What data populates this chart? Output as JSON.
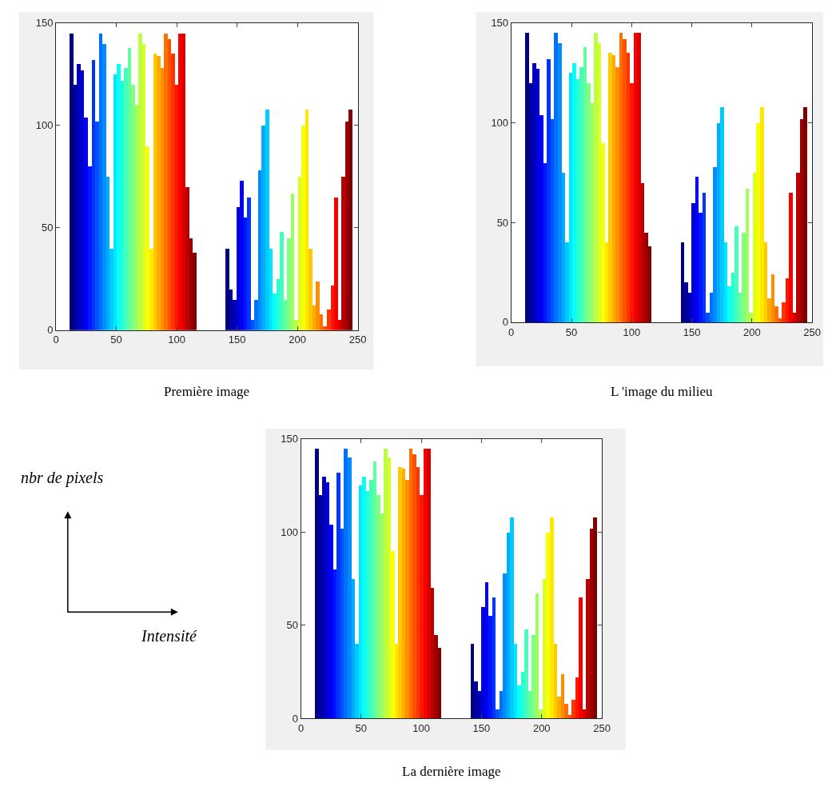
{
  "chart_data": [
    {
      "type": "bar",
      "title": "Première image",
      "xlim": [
        0,
        250
      ],
      "ylim": [
        0,
        150
      ],
      "xticks": [
        0,
        50,
        100,
        150,
        200,
        250
      ],
      "yticks": [
        0,
        50,
        100,
        150
      ],
      "x": [
        13,
        16,
        19,
        22,
        25,
        28,
        31,
        34,
        37,
        40,
        43,
        46,
        49,
        52,
        55,
        58,
        61,
        64,
        67,
        70,
        73,
        76,
        79,
        82,
        85,
        88,
        91,
        94,
        97,
        100,
        103,
        106,
        109,
        112,
        115,
        142,
        145,
        148,
        151,
        154,
        157,
        160,
        163,
        166,
        169,
        172,
        175,
        178,
        181,
        184,
        187,
        190,
        193,
        196,
        199,
        202,
        205,
        208,
        211,
        214,
        217,
        220,
        223,
        226,
        229,
        232,
        235,
        238,
        241,
        244
      ],
      "values": [
        145,
        120,
        130,
        127,
        104,
        80,
        132,
        102,
        145,
        140,
        75,
        40,
        125,
        130,
        122,
        128,
        138,
        120,
        110,
        145,
        140,
        90,
        40,
        135,
        134,
        128,
        145,
        142,
        135,
        120,
        145,
        145,
        70,
        45,
        38,
        40,
        20,
        15,
        60,
        73,
        55,
        65,
        5,
        15,
        78,
        100,
        108,
        40,
        18,
        25,
        48,
        15,
        45,
        67,
        5,
        75,
        100,
        108,
        40,
        12,
        24,
        8,
        2,
        10,
        22,
        65,
        5,
        75,
        102,
        108
      ],
      "colors": [
        "#000080",
        "#00009e",
        "#0000bb",
        "#0000d9",
        "#0000f8",
        "#0016ff",
        "#0034ff",
        "#0052ff",
        "#0070ff",
        "#008eff",
        "#00acff",
        "#00caff",
        "#00e8ff",
        "#07fff8",
        "#25ffd9",
        "#43ffbb",
        "#61ff9e",
        "#80ff80",
        "#9eff61",
        "#bbff43",
        "#d9ff25",
        "#f8ff07",
        "#ffe800",
        "#ffca00",
        "#ffac00",
        "#ff8e00",
        "#ff7000",
        "#ff5200",
        "#ff3400",
        "#ff1600",
        "#f80000",
        "#d90000",
        "#bb0000",
        "#9e0000",
        "#800000",
        "#000080",
        "#00009e",
        "#0000bb",
        "#0000d9",
        "#0000f8",
        "#0016ff",
        "#0034ff",
        "#0052ff",
        "#0070ff",
        "#008eff",
        "#00acff",
        "#00caff",
        "#00e8ff",
        "#07fff8",
        "#25ffd9",
        "#43ffbb",
        "#61ff9e",
        "#80ff80",
        "#9eff61",
        "#bbff43",
        "#d9ff25",
        "#f8ff07",
        "#ffe800",
        "#ffca00",
        "#ffac00",
        "#ff8e00",
        "#ff7000",
        "#ff5200",
        "#ff3400",
        "#ff1600",
        "#f80000",
        "#d90000",
        "#bb0000",
        "#9e0000",
        "#800000"
      ]
    },
    {
      "type": "bar",
      "title": "L 'image du milieu",
      "xlim": [
        0,
        250
      ],
      "ylim": [
        0,
        150
      ],
      "xticks": [
        0,
        50,
        100,
        150,
        200,
        250
      ],
      "yticks": [
        0,
        50,
        100,
        150
      ],
      "x": [
        13,
        16,
        19,
        22,
        25,
        28,
        31,
        34,
        37,
        40,
        43,
        46,
        49,
        52,
        55,
        58,
        61,
        64,
        67,
        70,
        73,
        76,
        79,
        82,
        85,
        88,
        91,
        94,
        97,
        100,
        103,
        106,
        109,
        112,
        115,
        142,
        145,
        148,
        151,
        154,
        157,
        160,
        163,
        166,
        169,
        172,
        175,
        178,
        181,
        184,
        187,
        190,
        193,
        196,
        199,
        202,
        205,
        208,
        211,
        214,
        217,
        220,
        223,
        226,
        229,
        232,
        235,
        238,
        241,
        244
      ],
      "values": [
        145,
        120,
        130,
        127,
        104,
        80,
        132,
        102,
        145,
        140,
        75,
        40,
        125,
        130,
        122,
        128,
        138,
        120,
        110,
        145,
        140,
        90,
        40,
        135,
        134,
        128,
        145,
        142,
        135,
        120,
        145,
        145,
        70,
        45,
        38,
        40,
        20,
        15,
        60,
        73,
        55,
        65,
        5,
        15,
        78,
        100,
        108,
        40,
        18,
        25,
        48,
        15,
        45,
        67,
        5,
        75,
        100,
        108,
        40,
        12,
        24,
        8,
        2,
        10,
        22,
        65,
        5,
        75,
        102,
        108
      ],
      "colors": [
        "#000080",
        "#00009e",
        "#0000bb",
        "#0000d9",
        "#0000f8",
        "#0016ff",
        "#0034ff",
        "#0052ff",
        "#0070ff",
        "#008eff",
        "#00acff",
        "#00caff",
        "#00e8ff",
        "#07fff8",
        "#25ffd9",
        "#43ffbb",
        "#61ff9e",
        "#80ff80",
        "#9eff61",
        "#bbff43",
        "#d9ff25",
        "#f8ff07",
        "#ffe800",
        "#ffca00",
        "#ffac00",
        "#ff8e00",
        "#ff7000",
        "#ff5200",
        "#ff3400",
        "#ff1600",
        "#f80000",
        "#d90000",
        "#bb0000",
        "#9e0000",
        "#800000",
        "#000080",
        "#00009e",
        "#0000bb",
        "#0000d9",
        "#0000f8",
        "#0016ff",
        "#0034ff",
        "#0052ff",
        "#0070ff",
        "#008eff",
        "#00acff",
        "#00caff",
        "#00e8ff",
        "#07fff8",
        "#25ffd9",
        "#43ffbb",
        "#61ff9e",
        "#80ff80",
        "#9eff61",
        "#bbff43",
        "#d9ff25",
        "#f8ff07",
        "#ffe800",
        "#ffca00",
        "#ffac00",
        "#ff8e00",
        "#ff7000",
        "#ff5200",
        "#ff3400",
        "#ff1600",
        "#f80000",
        "#d90000",
        "#bb0000",
        "#9e0000",
        "#800000"
      ]
    },
    {
      "type": "bar",
      "title": "La dernière image",
      "xlim": [
        0,
        250
      ],
      "ylim": [
        0,
        150
      ],
      "xticks": [
        0,
        50,
        100,
        150,
        200,
        250
      ],
      "yticks": [
        0,
        50,
        100,
        150
      ],
      "x": [
        13,
        16,
        19,
        22,
        25,
        28,
        31,
        34,
        37,
        40,
        43,
        46,
        49,
        52,
        55,
        58,
        61,
        64,
        67,
        70,
        73,
        76,
        79,
        82,
        85,
        88,
        91,
        94,
        97,
        100,
        103,
        106,
        109,
        112,
        115,
        142,
        145,
        148,
        151,
        154,
        157,
        160,
        163,
        166,
        169,
        172,
        175,
        178,
        181,
        184,
        187,
        190,
        193,
        196,
        199,
        202,
        205,
        208,
        211,
        214,
        217,
        220,
        223,
        226,
        229,
        232,
        235,
        238,
        241,
        244
      ],
      "values": [
        145,
        120,
        130,
        127,
        104,
        80,
        132,
        102,
        145,
        140,
        75,
        40,
        125,
        130,
        122,
        128,
        138,
        120,
        110,
        145,
        140,
        90,
        40,
        135,
        134,
        128,
        145,
        142,
        135,
        120,
        145,
        145,
        70,
        45,
        38,
        40,
        20,
        15,
        60,
        73,
        55,
        65,
        5,
        15,
        78,
        100,
        108,
        40,
        18,
        25,
        48,
        15,
        45,
        67,
        5,
        75,
        100,
        108,
        40,
        12,
        24,
        8,
        2,
        10,
        22,
        65,
        5,
        75,
        102,
        108
      ],
      "colors": [
        "#000080",
        "#00009e",
        "#0000bb",
        "#0000d9",
        "#0000f8",
        "#0016ff",
        "#0034ff",
        "#0052ff",
        "#0070ff",
        "#008eff",
        "#00acff",
        "#00caff",
        "#00e8ff",
        "#07fff8",
        "#25ffd9",
        "#43ffbb",
        "#61ff9e",
        "#80ff80",
        "#9eff61",
        "#bbff43",
        "#d9ff25",
        "#f8ff07",
        "#ffe800",
        "#ffca00",
        "#ffac00",
        "#ff8e00",
        "#ff7000",
        "#ff5200",
        "#ff3400",
        "#ff1600",
        "#f80000",
        "#d90000",
        "#bb0000",
        "#9e0000",
        "#800000",
        "#000080",
        "#00009e",
        "#0000bb",
        "#0000d9",
        "#0000f8",
        "#0016ff",
        "#0034ff",
        "#0052ff",
        "#0070ff",
        "#008eff",
        "#00acff",
        "#00caff",
        "#00e8ff",
        "#07fff8",
        "#25ffd9",
        "#43ffbb",
        "#61ff9e",
        "#80ff80",
        "#9eff61",
        "#bbff43",
        "#d9ff25",
        "#f8ff07",
        "#ffe800",
        "#ffca00",
        "#ffac00",
        "#ff8e00",
        "#ff7000",
        "#ff5200",
        "#ff3400",
        "#ff1600",
        "#f80000",
        "#d90000",
        "#bb0000",
        "#9e0000",
        "#800000"
      ],
      "annotations": [
        "nbr de pixels",
        "Intensité"
      ]
    }
  ]
}
